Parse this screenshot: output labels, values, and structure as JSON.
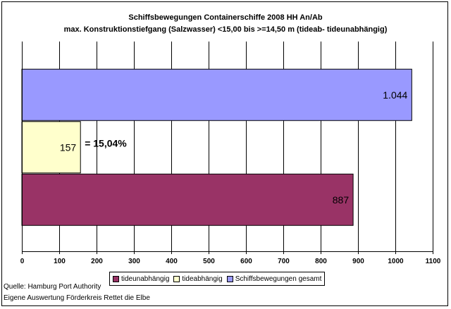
{
  "chart_data": {
    "type": "bar",
    "orientation": "horizontal",
    "title": "Schiffsbewegungen Containerschiffe 2008 HH An/Ab",
    "subtitle": "max. Konstruktionstiefgang (Salzwasser) <15,00  bis >=14,50 m (tideab- tideunabhängig)",
    "series": [
      {
        "name": "Schiffsbewegungen gesamt",
        "value": 1044,
        "label": "1.044",
        "color": "#9999ff"
      },
      {
        "name": "tideabhängig",
        "value": 157,
        "label": "157",
        "color": "#ffffcc",
        "annotation": "= 15,04%"
      },
      {
        "name": "tideunabhängig",
        "value": 887,
        "label": "887",
        "color": "#993366"
      }
    ],
    "xlim": [
      0,
      1100
    ],
    "xticks": [
      "0",
      "100",
      "200",
      "300",
      "400",
      "500",
      "600",
      "700",
      "800",
      "900",
      "1000",
      "1100"
    ],
    "grid": true,
    "legend_position": "bottom",
    "legend": [
      "tideunabhängig",
      "tideabhängig",
      "Schiffsbewegungen gesamt"
    ]
  },
  "sources": [
    "Quelle: Hamburg Port Authority",
    "Eigene Auswertung Förderkreis Rettet die Elbe"
  ],
  "colors": {
    "plot_background": "#ffffff",
    "grid": "#000000",
    "border": "#000000"
  }
}
